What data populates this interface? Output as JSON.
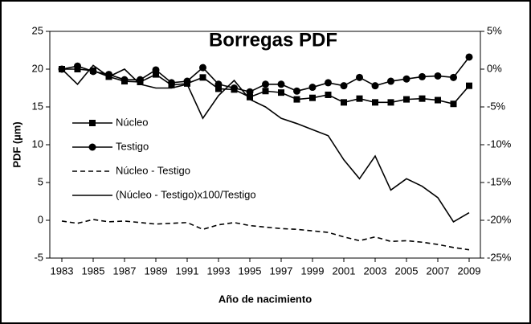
{
  "chart_data": {
    "type": "line",
    "title": "Borregas PDF",
    "y_label": "PDF (µm)",
    "x_label": "Año de nacimiento",
    "x": [
      1983,
      1984,
      1985,
      1986,
      1987,
      1988,
      1989,
      1990,
      1991,
      1992,
      1993,
      1994,
      1995,
      1996,
      1997,
      1998,
      1999,
      2000,
      2001,
      2002,
      2003,
      2004,
      2005,
      2006,
      2007,
      2008,
      2009
    ],
    "xlim": [
      1983,
      2009
    ],
    "xticks": [
      1983,
      1985,
      1987,
      1989,
      1991,
      1993,
      1995,
      1997,
      1999,
      2001,
      2003,
      2005,
      2007,
      2009
    ],
    "ylim": [
      -5,
      25
    ],
    "yticks": [
      -5,
      0,
      5,
      10,
      15,
      20,
      25
    ],
    "y2lim": [
      -25,
      5
    ],
    "y2ticks": [
      {
        "value": 5,
        "label": "5%"
      },
      {
        "value": 0,
        "label": "0%"
      },
      {
        "value": -5,
        "label": "-5%"
      },
      {
        "value": -10,
        "label": "-10%"
      },
      {
        "value": -15,
        "label": "-15%"
      },
      {
        "value": -20,
        "label": "-20%"
      },
      {
        "value": -25,
        "label": "-25%"
      }
    ],
    "series": [
      {
        "name": "Núcleo",
        "color": "#000000",
        "marker": "square",
        "values": [
          20,
          20,
          19.8,
          19,
          18.4,
          18.3,
          19.3,
          17.9,
          18.1,
          18.9,
          17.4,
          17.3,
          16.3,
          17.1,
          16.9,
          16,
          16.2,
          16.6,
          15.6,
          16.1,
          15.6,
          15.6,
          16,
          16.1,
          15.9,
          15.4,
          17.8
        ]
      },
      {
        "name": "Testigo",
        "color": "#000000",
        "marker": "circle",
        "values": [
          20,
          20.4,
          19.7,
          19.3,
          18.6,
          18.6,
          19.9,
          18.2,
          18.4,
          20.2,
          18,
          17.5,
          17,
          18,
          18,
          17.1,
          17.6,
          18.2,
          17.8,
          18.9,
          17.8,
          18.4,
          18.7,
          19,
          19.1,
          18.9,
          21.6
        ]
      },
      {
        "name": "Núcleo - Testigo",
        "color": "#000000",
        "dash": "dashed",
        "values": [
          -0.1,
          -0.4,
          0.1,
          -0.2,
          -0.1,
          -0.3,
          -0.5,
          -0.4,
          -0.3,
          -1.2,
          -0.6,
          -0.3,
          -0.7,
          -0.9,
          -1.1,
          -1.2,
          -1.4,
          -1.6,
          -2.2,
          -2.7,
          -2.2,
          -2.8,
          -2.7,
          -2.9,
          -3.2,
          -3.6,
          -3.9
        ]
      },
      {
        "name": "(Núcleo - Testigo)x100/Testigo",
        "color": "#000000",
        "axis": "y2",
        "values": [
          0,
          -2,
          0.5,
          -1,
          0,
          -2,
          -2.5,
          -2.5,
          -2,
          -6.5,
          -3.5,
          -1.5,
          -4,
          -5,
          -6.5,
          -7.2,
          -8,
          -8.8,
          -12,
          -14.5,
          -11.5,
          -16,
          -14.5,
          -15.5,
          -17,
          -20.2,
          -19
        ]
      }
    ]
  }
}
